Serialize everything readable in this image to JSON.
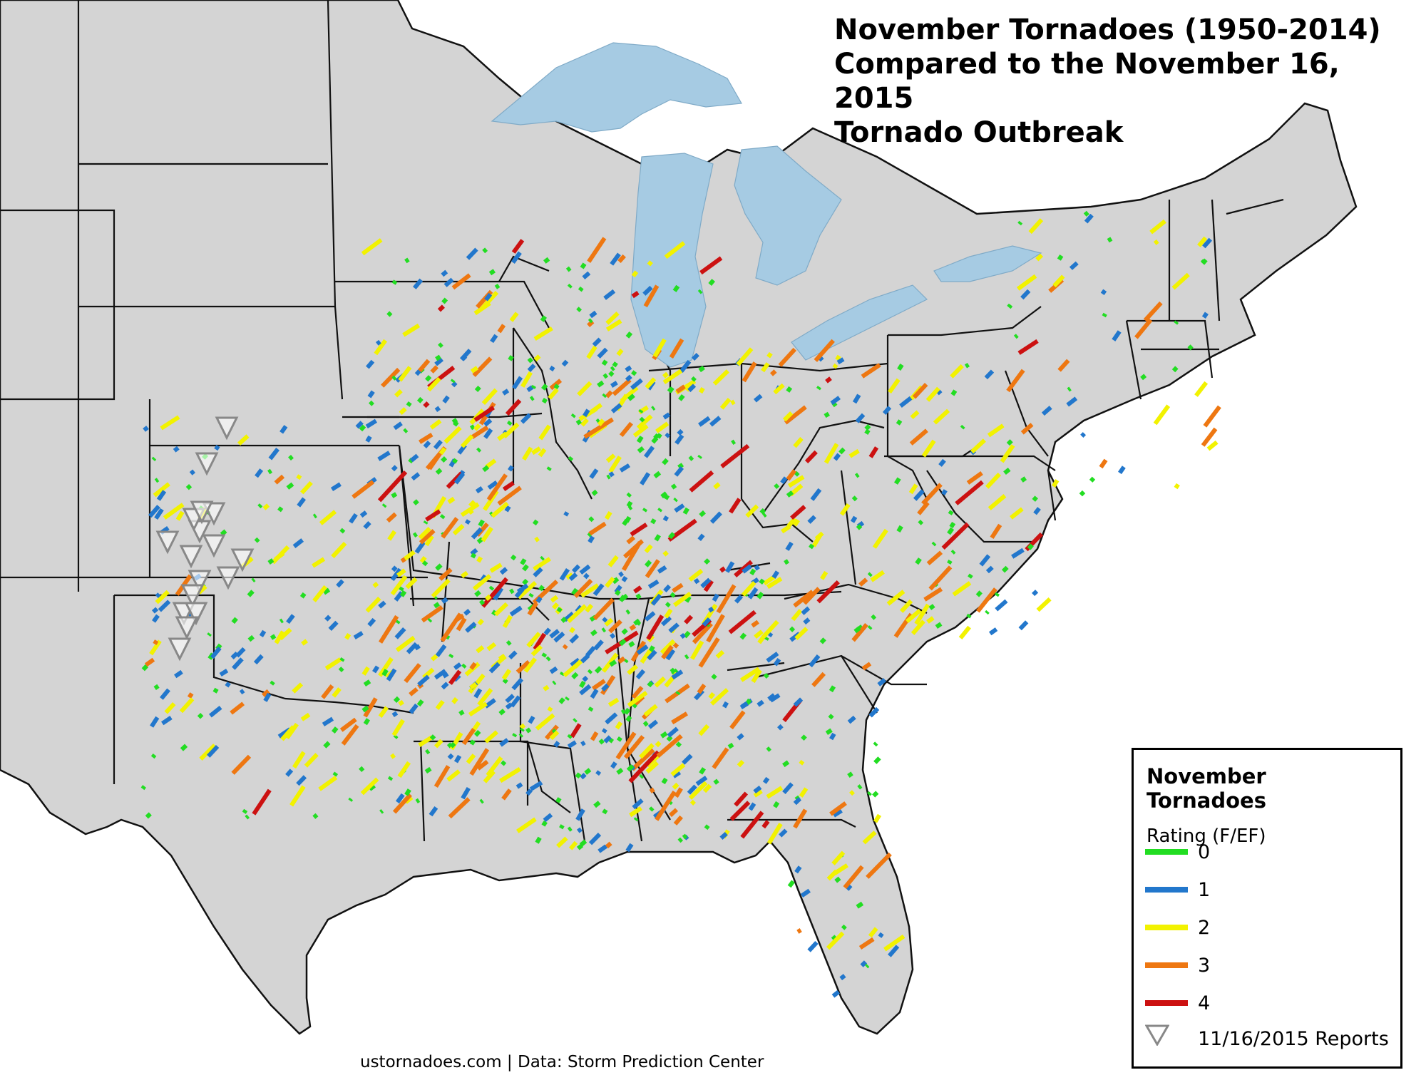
{
  "title": {
    "line1": "November Tornadoes (1950-2014)",
    "line2": "Compared to the November 16, 2015",
    "line3": "Tornado Outbreak"
  },
  "credit": "ustornadoes.com | Data: Storm Prediction Center",
  "legend": {
    "title": "November Tornadoes",
    "subtitle": "Rating (F/EF)",
    "items": [
      {
        "label": "0",
        "color": "#22dd22"
      },
      {
        "label": "1",
        "color": "#2277cc"
      },
      {
        "label": "2",
        "color": "#f2f200"
      },
      {
        "label": "3",
        "color": "#ee7711"
      },
      {
        "label": "4",
        "color": "#cc1111"
      }
    ],
    "reports_label": "11/16/2015 Reports"
  },
  "colors": {
    "land": "#d4d4d4",
    "outside": "#ffffff",
    "lakes": "#a6cbe3",
    "border": "#111111",
    "report_marker": "#888888"
  }
}
